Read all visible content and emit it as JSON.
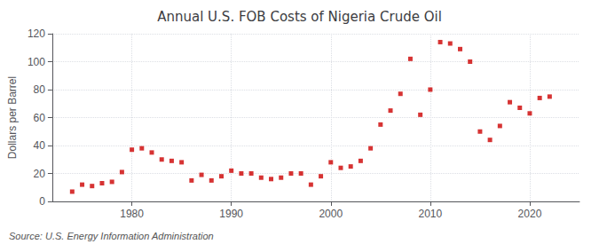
{
  "chart_data": {
    "type": "scatter",
    "title": "Annual U.S. FOB Costs of Nigeria Crude Oil",
    "ylabel": "Dollars per Barrel",
    "annotations": [
      "Source: U.S. Energy Information Administration"
    ],
    "color": "#cc0000",
    "marker": "square",
    "x": [
      1974,
      1975,
      1976,
      1977,
      1978,
      1979,
      1980,
      1981,
      1982,
      1983,
      1984,
      1985,
      1986,
      1987,
      1988,
      1989,
      1990,
      1991,
      1992,
      1993,
      1994,
      1995,
      1996,
      1997,
      1998,
      1999,
      2000,
      2001,
      2002,
      2003,
      2004,
      2005,
      2006,
      2007,
      2008,
      2009,
      2010,
      2011,
      2012,
      2013,
      2014,
      2015,
      2016,
      2017,
      2018,
      2019,
      2020,
      2021,
      2022
    ],
    "values": [
      7,
      12,
      11,
      13,
      14,
      21,
      37,
      38,
      35,
      30,
      29,
      28,
      15,
      19,
      15,
      18,
      22,
      20,
      20,
      17,
      16,
      17,
      20,
      20,
      12,
      18,
      28,
      24,
      25,
      29,
      38,
      55,
      65,
      77,
      102,
      62,
      80,
      114,
      113,
      109,
      100,
      50,
      44,
      54,
      71,
      67,
      63,
      74,
      75
    ],
    "xlim": [
      1972,
      2025
    ],
    "xticks": [
      1980,
      1990,
      2000,
      2010,
      2020
    ],
    "ylim": [
      0,
      120
    ],
    "yticks": [
      0,
      20,
      40,
      60,
      80,
      100,
      120
    ],
    "grid": true
  }
}
